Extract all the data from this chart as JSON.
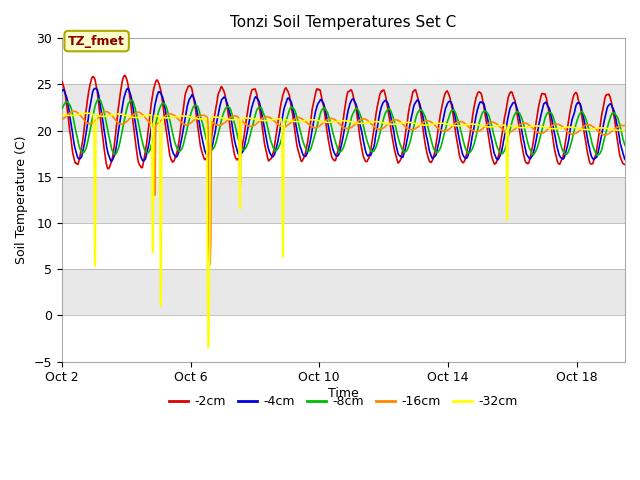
{
  "title": "Tonzi Soil Temperatures Set C",
  "xlabel": "Time",
  "ylabel": "Soil Temperature (C)",
  "ylim": [
    -5,
    30
  ],
  "yticks": [
    -5,
    0,
    5,
    10,
    15,
    20,
    25,
    30
  ],
  "background_color": "#ffffff",
  "plot_bg_light": "#f0f0f0",
  "plot_bg_dark": "#d8d8d8",
  "series": [
    {
      "label": "-2cm",
      "color": "#dd0000",
      "lw": 1.2
    },
    {
      "label": "-4cm",
      "color": "#0000dd",
      "lw": 1.2
    },
    {
      "label": "-8cm",
      "color": "#00bb00",
      "lw": 1.2
    },
    {
      "label": "-16cm",
      "color": "#ff8800",
      "lw": 1.2
    },
    {
      "label": "-32cm",
      "color": "#ffff00",
      "lw": 1.2
    }
  ],
  "annotation_text": "TZ_fmet",
  "annotation_color": "#880000",
  "annotation_bg": "#ffffcc",
  "annotation_border": "#aaaa00",
  "xstart": 2,
  "xend": 19.5,
  "xticks": [
    2,
    6,
    10,
    14,
    18
  ],
  "xtick_labels": [
    "Oct 2",
    "Oct 6",
    "Oct 10",
    "Oct 14",
    "Oct 18"
  ]
}
